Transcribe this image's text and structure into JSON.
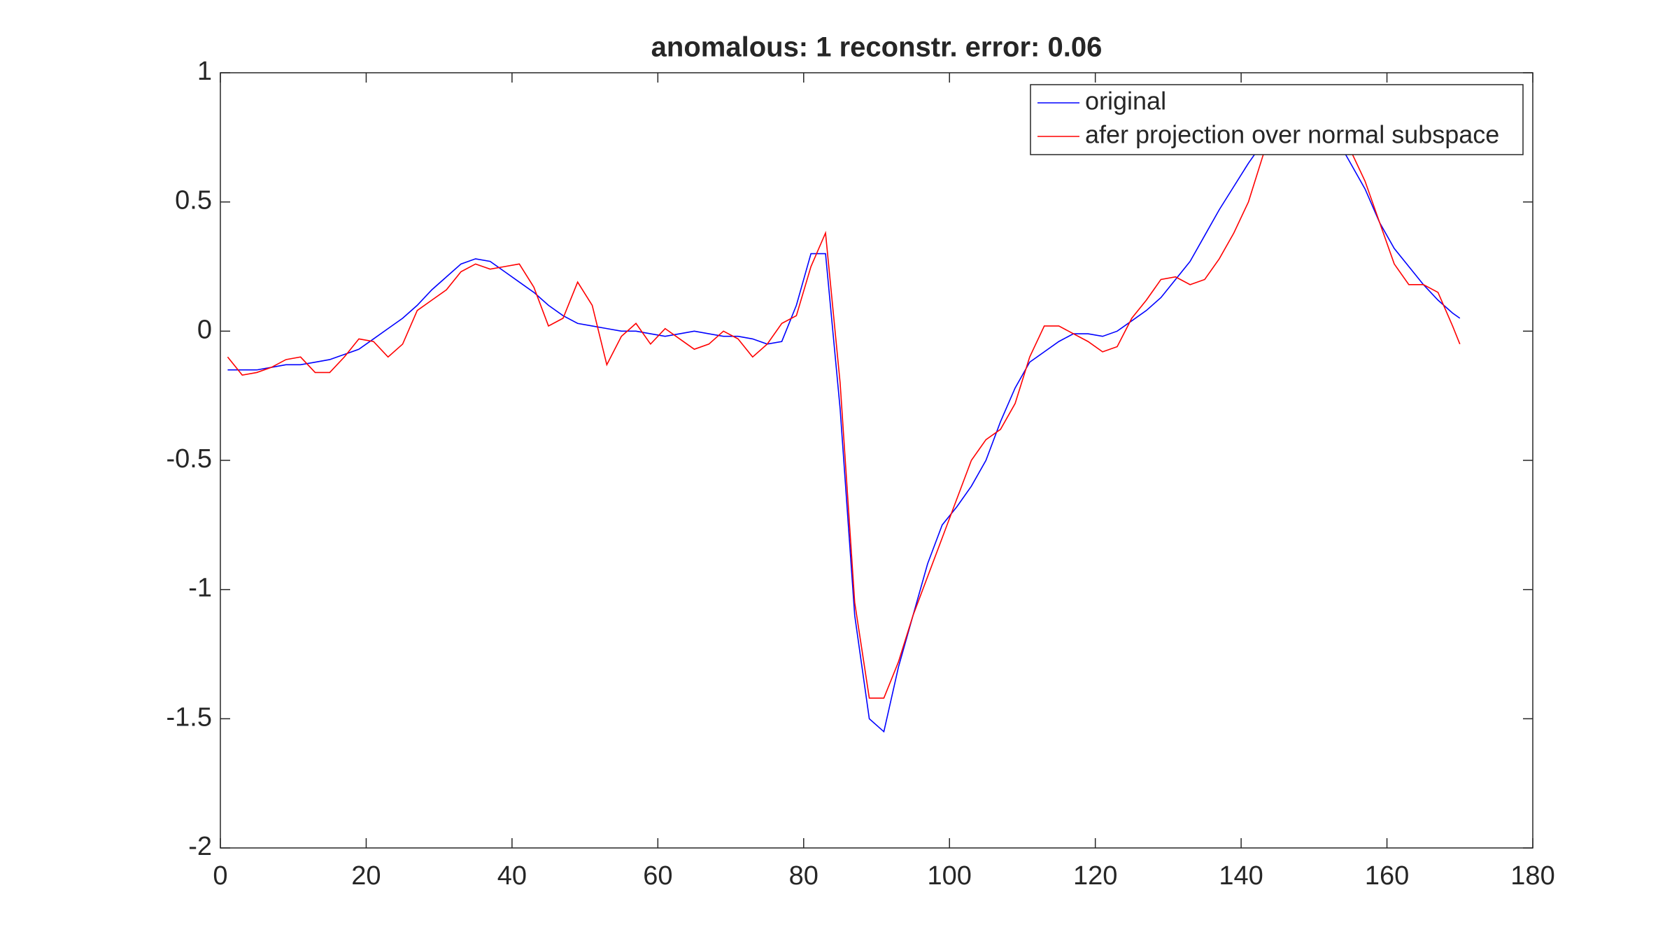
{
  "chart_data": {
    "type": "line",
    "title": "anomalous: 1 reconstr. error: 0.06",
    "x": [
      1,
      3,
      5,
      7,
      9,
      11,
      13,
      15,
      17,
      19,
      21,
      23,
      25,
      27,
      29,
      31,
      33,
      35,
      37,
      39,
      41,
      43,
      45,
      47,
      49,
      51,
      53,
      55,
      57,
      59,
      61,
      63,
      65,
      67,
      69,
      71,
      73,
      75,
      77,
      79,
      81,
      83,
      85,
      87,
      89,
      91,
      93,
      95,
      97,
      99,
      101,
      103,
      105,
      107,
      109,
      111,
      113,
      115,
      117,
      119,
      121,
      123,
      125,
      127,
      129,
      131,
      133,
      135,
      137,
      139,
      141,
      143,
      145,
      147,
      149,
      151,
      153,
      155,
      157,
      159,
      161,
      163,
      165,
      167,
      169,
      170
    ],
    "series": [
      {
        "name": "original",
        "color": "#0000ff",
        "values": [
          -0.15,
          -0.15,
          -0.15,
          -0.14,
          -0.13,
          -0.13,
          -0.12,
          -0.11,
          -0.09,
          -0.07,
          -0.03,
          0.01,
          0.05,
          0.1,
          0.16,
          0.21,
          0.26,
          0.28,
          0.27,
          0.23,
          0.19,
          0.15,
          0.1,
          0.06,
          0.03,
          0.02,
          0.01,
          0.0,
          0.0,
          -0.01,
          -0.02,
          -0.01,
          0.0,
          -0.01,
          -0.02,
          -0.02,
          -0.03,
          -0.05,
          -0.04,
          0.1,
          0.3,
          0.3,
          -0.3,
          -1.1,
          -1.5,
          -1.55,
          -1.3,
          -1.1,
          -0.9,
          -0.75,
          -0.68,
          -0.6,
          -0.5,
          -0.35,
          -0.22,
          -0.12,
          -0.08,
          -0.04,
          -0.01,
          -0.01,
          -0.02,
          0.0,
          0.04,
          0.08,
          0.13,
          0.2,
          0.27,
          0.37,
          0.47,
          0.56,
          0.65,
          0.73,
          0.8,
          0.84,
          0.85,
          0.82,
          0.75,
          0.65,
          0.55,
          0.42,
          0.32,
          0.25,
          0.18,
          0.12,
          0.07,
          0.05
        ]
      },
      {
        "name": "afer projection over normal subspace",
        "color": "#ff0000",
        "values": [
          -0.1,
          -0.17,
          -0.16,
          -0.14,
          -0.11,
          -0.1,
          -0.16,
          -0.16,
          -0.1,
          -0.03,
          -0.04,
          -0.1,
          -0.05,
          0.08,
          0.12,
          0.16,
          0.23,
          0.26,
          0.24,
          0.25,
          0.26,
          0.17,
          0.02,
          0.05,
          0.19,
          0.1,
          -0.13,
          -0.02,
          0.03,
          -0.05,
          0.01,
          -0.03,
          -0.07,
          -0.05,
          0.0,
          -0.03,
          -0.1,
          -0.05,
          0.03,
          0.06,
          0.25,
          0.38,
          -0.2,
          -1.05,
          -1.42,
          -1.42,
          -1.28,
          -1.1,
          -0.95,
          -0.8,
          -0.65,
          -0.5,
          -0.42,
          -0.38,
          -0.28,
          -0.1,
          0.02,
          0.02,
          -0.01,
          -0.04,
          -0.08,
          -0.06,
          0.05,
          0.12,
          0.2,
          0.21,
          0.18,
          0.2,
          0.28,
          0.38,
          0.5,
          0.68,
          0.8,
          0.86,
          0.88,
          0.85,
          0.8,
          0.7,
          0.58,
          0.42,
          0.26,
          0.18,
          0.18,
          0.15,
          0.02,
          -0.05
        ]
      }
    ],
    "xlim": [
      0,
      180
    ],
    "xticks": [
      0,
      20,
      40,
      60,
      80,
      100,
      120,
      140,
      160,
      180
    ],
    "ylim": [
      -2,
      1
    ],
    "yticks": [
      -2,
      -1.5,
      -1,
      -0.5,
      0,
      0.5,
      1
    ],
    "legend": "northeast"
  }
}
